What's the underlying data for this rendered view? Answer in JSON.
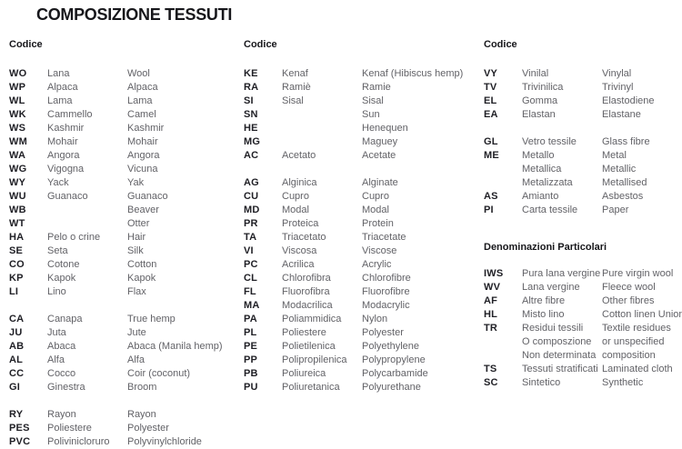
{
  "title": "COMPOSIZIONE TESSUTI",
  "colors": {
    "background": "#ffffff",
    "heading": "#17171b",
    "code_text": "#202026",
    "name_text": "#626267"
  },
  "columns": [
    {
      "header": "Codice",
      "blocks": [
        {
          "type": "rows",
          "rows": [
            {
              "code": "WO",
              "it": "Lana",
              "en": "Wool"
            },
            {
              "code": "WP",
              "it": "Alpaca",
              "en": "Alpaca"
            },
            {
              "code": "WL",
              "it": "Lama",
              "en": "Lama"
            },
            {
              "code": "WK",
              "it": "Cammello",
              "en": "Camel"
            },
            {
              "code": "WS",
              "it": "Kashmir",
              "en": "Kashmir"
            },
            {
              "code": "WM",
              "it": "Mohair",
              "en": "Mohair"
            },
            {
              "code": "WA",
              "it": "Angora",
              "en": "Angora"
            },
            {
              "code": "WG",
              "it": "Vigogna",
              "en": "Vicuna"
            },
            {
              "code": "WY",
              "it": "Yack",
              "en": "Yak"
            },
            {
              "code": "WU",
              "it": "Guanaco",
              "en": "Guanaco"
            },
            {
              "code": "WB",
              "it": "",
              "en": "Beaver"
            },
            {
              "code": "WT",
              "it": "",
              "en": "Otter"
            },
            {
              "code": "HA",
              "it": "Pelo o crine",
              "en": "Hair"
            },
            {
              "code": "SE",
              "it": "Seta",
              "en": "Silk"
            },
            {
              "code": "CO",
              "it": "Cotone",
              "en": "Cotton"
            },
            {
              "code": "KP",
              "it": "Kapok",
              "en": "Kapok"
            },
            {
              "code": "LI",
              "it": "Lino",
              "en": "Flax"
            }
          ]
        },
        {
          "type": "rows",
          "rows": [
            {
              "code": "CA",
              "it": "Canapa",
              "en": "True hemp"
            },
            {
              "code": "JU",
              "it": "Juta",
              "en": "Jute"
            },
            {
              "code": "AB",
              "it": "Abaca",
              "en": "Abaca (Manila hemp)"
            },
            {
              "code": "AL",
              "it": "Alfa",
              "en": "Alfa"
            },
            {
              "code": "CC",
              "it": "Cocco",
              "en": "Coir (coconut)"
            },
            {
              "code": "GI",
              "it": "Ginestra",
              "en": "Broom"
            }
          ]
        },
        {
          "type": "rows",
          "rows": [
            {
              "code": "RY",
              "it": "Rayon",
              "en": "Rayon"
            },
            {
              "code": "PES",
              "it": "Poliestere",
              "en": "Polyester"
            },
            {
              "code": "PVC",
              "it": "Polivinicloruro",
              "en": "Polyvinylchloride"
            }
          ]
        }
      ]
    },
    {
      "header": "Codice",
      "blocks": [
        {
          "type": "rows",
          "rows": [
            {
              "code": "KE",
              "it": "Kenaf",
              "en": "Kenaf (Hibiscus hemp)"
            },
            {
              "code": "RA",
              "it": "Ramiè",
              "en": "Ramie"
            },
            {
              "code": "SI",
              "it": "Sisal",
              "en": "Sisal"
            },
            {
              "code": "SN",
              "it": "",
              "en": "Sun"
            },
            {
              "code": "HE",
              "it": "",
              "en": "Henequen"
            },
            {
              "code": "MG",
              "it": "",
              "en": "Maguey"
            },
            {
              "code": "AC",
              "it": "Acetato",
              "en": "Acetate"
            }
          ]
        },
        {
          "type": "rows",
          "rows": [
            {
              "code": "AG",
              "it": "Alginica",
              "en": "Alginate"
            },
            {
              "code": "CU",
              "it": "Cupro",
              "en": "Cupro"
            },
            {
              "code": "MD",
              "it": "Modal",
              "en": "Modal"
            },
            {
              "code": "PR",
              "it": "Proteica",
              "en": "Protein"
            },
            {
              "code": "TA",
              "it": "Triacetato",
              "en": "Triacetate"
            },
            {
              "code": "VI",
              "it": "Viscosa",
              "en": "Viscose"
            },
            {
              "code": "PC",
              "it": "Acrilica",
              "en": "Acrylic"
            },
            {
              "code": "CL",
              "it": "Chlorofibra",
              "en": "Chlorofibre"
            },
            {
              "code": "FL",
              "it": "Fluorofibra",
              "en": "Fluorofibre"
            },
            {
              "code": "MA",
              "it": "Modacrilica",
              "en": "Modacrylic"
            },
            {
              "code": "PA",
              "it": "Poliammidica",
              "en": "Nylon"
            },
            {
              "code": "PL",
              "it": "Poliestere",
              "en": "Polyester"
            },
            {
              "code": "PE",
              "it": "Polietilenica",
              "en": "Polyethylene"
            },
            {
              "code": "PP",
              "it": "Polipropilenica",
              "en": "Polypropylene"
            },
            {
              "code": "PB",
              "it": "Poliureica",
              "en": "Polycarbamide"
            },
            {
              "code": "PU",
              "it": "Poliuretanica",
              "en": "Polyurethane"
            }
          ]
        }
      ]
    },
    {
      "header": "Codice",
      "blocks": [
        {
          "type": "rows",
          "rows": [
            {
              "code": "VY",
              "it": "Vinilal",
              "en": "Vinylal"
            },
            {
              "code": "TV",
              "it": "Trivinilica",
              "en": "Trivinyl"
            },
            {
              "code": "EL",
              "it": "Gomma",
              "en": "Elastodiene"
            },
            {
              "code": "EA",
              "it": "Elastan",
              "en": "Elastane"
            }
          ]
        },
        {
          "type": "rows",
          "rows": [
            {
              "code": "GL",
              "it": "Vetro tessile",
              "en": "Glass fibre"
            },
            {
              "code": "ME",
              "it": "Metallo",
              "en": "Metal"
            },
            {
              "code": "",
              "it": "Metallica",
              "en": "Metallic"
            },
            {
              "code": "",
              "it": "Metalizzata",
              "en": "Metallised"
            },
            {
              "code": "AS",
              "it": "Amianto",
              "en": "Asbestos"
            },
            {
              "code": "PI",
              "it": "Carta tessile",
              "en": "Paper"
            }
          ]
        },
        {
          "type": "subheader",
          "text": "Denominazioni Particolari"
        },
        {
          "type": "rows",
          "rows": [
            {
              "code": "IWS",
              "it": "Pura lana vergine",
              "en": "Pure virgin wool"
            },
            {
              "code": "WV",
              "it": "Lana vergine",
              "en": "Fleece wool"
            },
            {
              "code": "AF",
              "it": "Altre fibre",
              "en": "Other fibres"
            },
            {
              "code": "HL",
              "it": "Misto lino",
              "en": "Cotton linen Union"
            },
            {
              "code": "TR",
              "it": "Residui tessili",
              "en": "Textile residues"
            },
            {
              "code": "",
              "it": "O composzione",
              "en": "or unspecified"
            },
            {
              "code": "",
              "it": "Non determinata",
              "en": "composition"
            },
            {
              "code": "TS",
              "it": "Tessuti stratificati",
              "en": "Laminated cloth"
            },
            {
              "code": "SC",
              "it": "Sintetico",
              "en": "Synthetic"
            }
          ]
        }
      ]
    }
  ]
}
